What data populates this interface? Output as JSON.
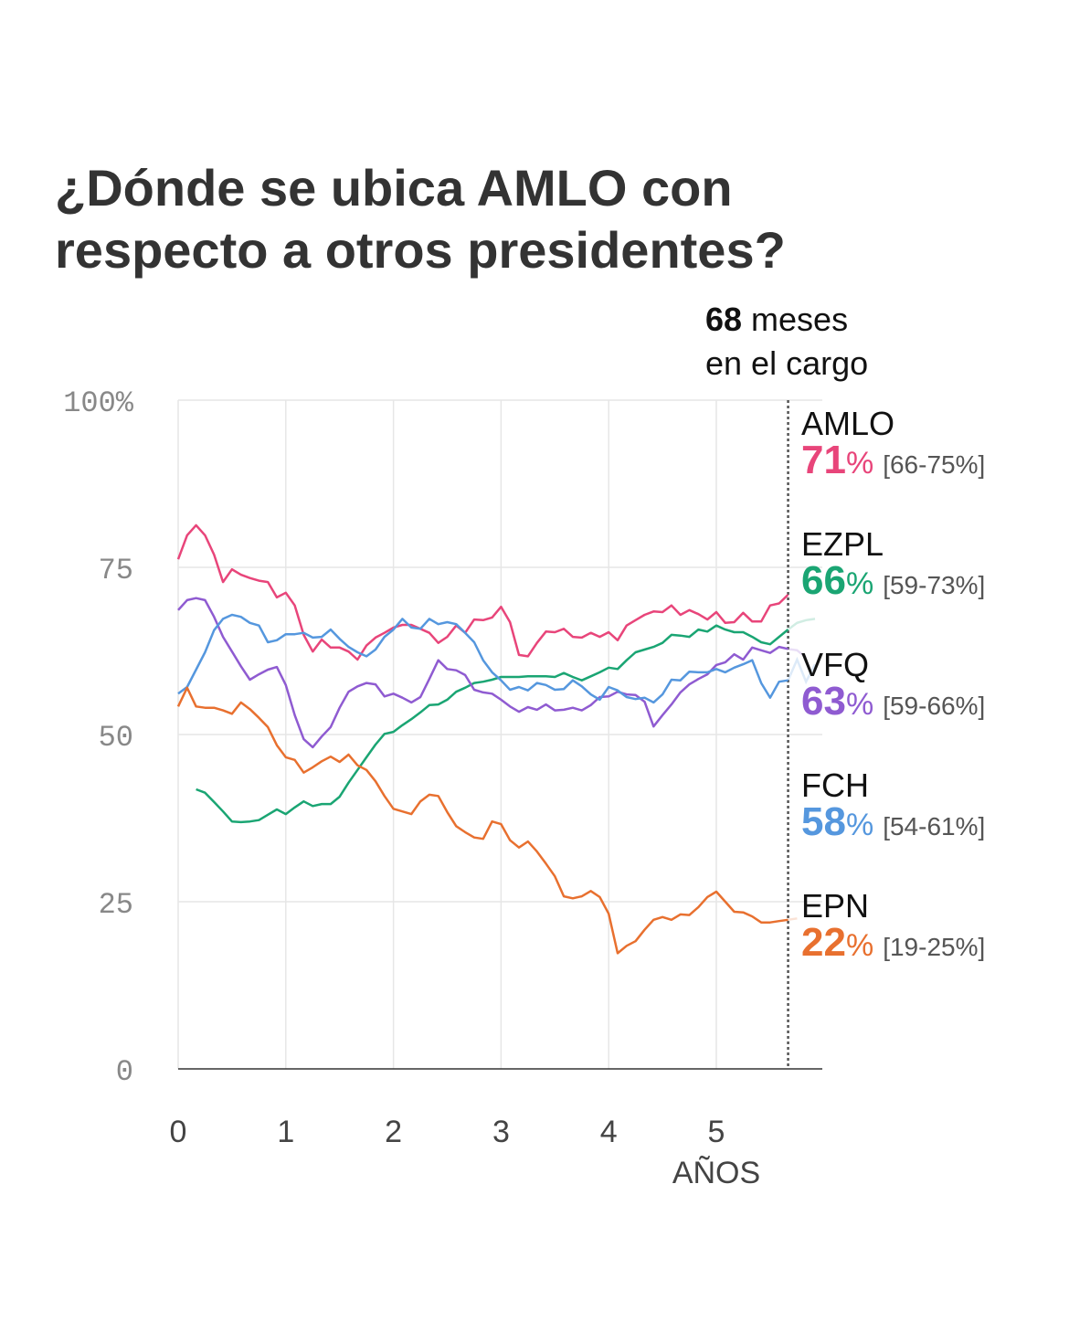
{
  "title": "¿Dónde se ubica AMLO con respecto a otros presidentes?",
  "annotation": {
    "months": "68",
    "months_suffix": " meses",
    "line2": "en el cargo",
    "at_years": 5.667
  },
  "chart_data": {
    "type": "line",
    "title": "¿Dónde se ubica AMLO con respecto a otros presidentes?",
    "xlabel": "AÑOS",
    "ylabel": "",
    "xlim": [
      0,
      6
    ],
    "ylim": [
      0,
      100
    ],
    "x_unit": "months",
    "x_ticks": [
      {
        "v": 0,
        "label": "0"
      },
      {
        "v": 1,
        "label": "1"
      },
      {
        "v": 2,
        "label": "2"
      },
      {
        "v": 3,
        "label": "3"
      },
      {
        "v": 4,
        "label": "4"
      },
      {
        "v": 5,
        "label": "5"
      }
    ],
    "y_ticks": [
      {
        "v": 0,
        "label": "0"
      },
      {
        "v": 25,
        "label": "25"
      },
      {
        "v": 50,
        "label": "50"
      },
      {
        "v": 75,
        "label": "75"
      },
      {
        "v": 100,
        "label": "100%"
      }
    ],
    "grid": true,
    "series": [
      {
        "name": "AMLO",
        "color": "#e8457a",
        "value": "71",
        "range": "[66-75%]",
        "start_month": 0,
        "values": [
          76.2,
          79.8,
          81.3,
          79.8,
          76.9,
          72.8,
          74.7,
          73.9,
          73.4,
          73,
          72.8,
          70.5,
          71.2,
          69.3,
          64.9,
          62.4,
          64.2,
          63,
          63,
          62.4,
          61.2,
          63.3,
          64.5,
          65.2,
          66,
          66.4,
          66.4,
          65.8,
          65.2,
          63.7,
          64.6,
          66.3,
          65.2,
          67.2,
          67.1,
          67.5,
          69.1,
          66.8,
          61.9,
          61.7,
          63.7,
          65.4,
          65.3,
          65.8,
          64.6,
          64.5,
          65.2,
          64.6,
          65.3,
          64.1,
          66.3,
          67.1,
          67.9,
          68.4,
          68.3,
          69.3,
          67.9,
          68.6,
          68,
          67.2,
          68.3,
          66.7,
          66.8,
          68.2,
          66.9,
          66.9,
          69.3,
          69.6,
          70.9
        ]
      },
      {
        "name": "EZPL",
        "color": "#1aa573",
        "value": "66",
        "range": "[59-73%]",
        "start_month": 2,
        "values": [
          41.8,
          41.3,
          39.9,
          38.5,
          37,
          36.9,
          37,
          37.2,
          38,
          38.8,
          38.1,
          39.1,
          40,
          39.3,
          39.6,
          39.6,
          40.7,
          42.8,
          44.7,
          46.6,
          48.5,
          50.1,
          50.4,
          51.4,
          52.3,
          53.3,
          54.4,
          54.5,
          55.2,
          56.4,
          57,
          57.7,
          57.9,
          58.2,
          58.6,
          58.6,
          58.6,
          58.7,
          58.7,
          58.7,
          58.6,
          59.2,
          58.6,
          58.1,
          58.7,
          59.3,
          60,
          59.8,
          61.1,
          62.3,
          62.7,
          63.1,
          63.7,
          64.9,
          64.8,
          64.6,
          65.7,
          65.4,
          66.3,
          65.7,
          65.3,
          65.3,
          64.6,
          63.8,
          63.5,
          64.6,
          65.7,
          66.7,
          67.1,
          67.3
        ]
      },
      {
        "name": "VFQ",
        "color": "#8f5bd1",
        "value": "63",
        "range": "[59-66%]",
        "start_month": 0,
        "values": [
          68.6,
          70.1,
          70.4,
          70.1,
          67.6,
          64.6,
          62.4,
          60.2,
          58.2,
          59,
          59.7,
          60.1,
          57.4,
          52.9,
          49.3,
          48.1,
          49.7,
          51.1,
          54,
          56.4,
          57.2,
          57.7,
          57.5,
          55.7,
          56.1,
          55.5,
          54.8,
          55.6,
          58.3,
          61.1,
          59.8,
          59.6,
          58.9,
          56.7,
          56.3,
          56.1,
          55.2,
          54.2,
          53.4,
          54.1,
          53.7,
          54.5,
          53.6,
          53.7,
          54,
          53.6,
          54.4,
          55.6,
          55.7,
          56.4,
          56,
          55.9,
          54.9,
          51.2,
          52.9,
          54.5,
          56.3,
          57.5,
          58.3,
          59,
          60.4,
          60.8,
          62,
          61.2,
          63,
          62.6,
          62.2,
          63.1,
          62.8,
          62.6,
          61.5
        ]
      },
      {
        "name": "FCH",
        "color": "#5597de",
        "value": "58",
        "range": "[54-61%]",
        "start_month": 0,
        "values": [
          56.1,
          57.1,
          59.7,
          62.3,
          65.6,
          67.3,
          67.9,
          67.6,
          66.7,
          66.3,
          63.8,
          64.1,
          65,
          65,
          65.2,
          64.5,
          64.6,
          65.7,
          64.3,
          63.1,
          62.3,
          61.7,
          62.7,
          64.6,
          65.7,
          67.3,
          66,
          65.8,
          67.3,
          66.5,
          66.8,
          66.5,
          65.2,
          63.8,
          61.1,
          59.3,
          58.1,
          56.7,
          57.1,
          56.6,
          57.7,
          57.4,
          56.7,
          56.8,
          58.1,
          57.2,
          56,
          55.2,
          57.1,
          56.6,
          55.6,
          55.3,
          55.5,
          54.8,
          56,
          58.2,
          58.1,
          59.4,
          59.3,
          59.3,
          59.8,
          59.3,
          60,
          60.5,
          61.1,
          57.7,
          55.5,
          57.9,
          58.1,
          61.2,
          57.9,
          60.5
        ]
      },
      {
        "name": "EPN",
        "color": "#e8702f",
        "value": "22",
        "range": "[19-25%]",
        "start_month": 0,
        "values": [
          54.2,
          57,
          54.2,
          54,
          54,
          53.6,
          53.1,
          54.8,
          53.8,
          52.5,
          51.1,
          48.4,
          46.6,
          46.2,
          44.3,
          45.1,
          46,
          46.7,
          45.9,
          47,
          45.4,
          44.7,
          43,
          40.8,
          38.9,
          38.5,
          38.1,
          40,
          41,
          40.8,
          38.4,
          36.3,
          35.4,
          34.6,
          34.4,
          37,
          36.6,
          34.2,
          33.1,
          34,
          32.5,
          30.7,
          28.8,
          25.8,
          25.5,
          25.8,
          26.6,
          25.7,
          23.2,
          17.3,
          18.4,
          19.1,
          20.8,
          22.3,
          22.7,
          22.3,
          23.1,
          23,
          24.2,
          25.7,
          26.5,
          25,
          23.5,
          23.4,
          22.8,
          21.9,
          21.9,
          22.1,
          22.3,
          22.5
        ]
      }
    ]
  }
}
